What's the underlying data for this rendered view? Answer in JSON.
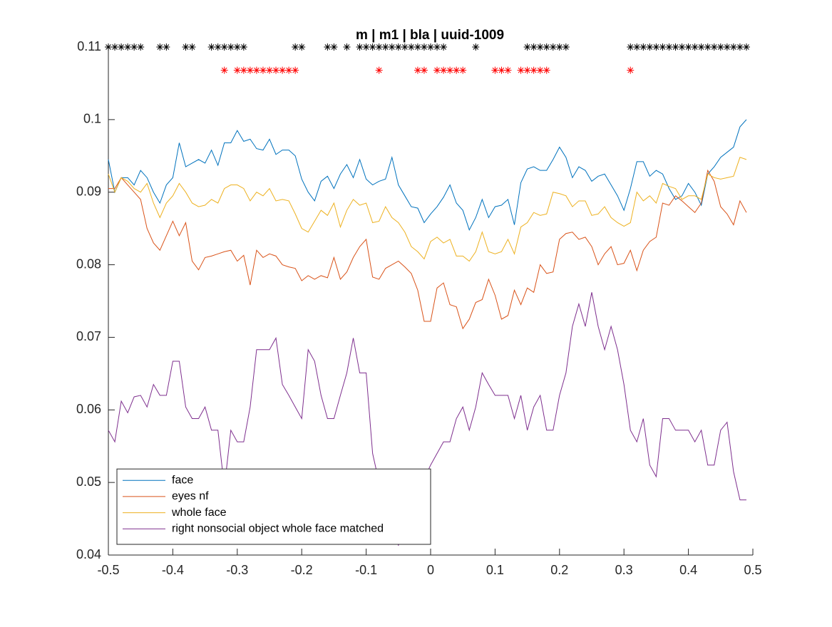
{
  "chart_data": {
    "type": "line",
    "title": "m | m1 | bla | uuid-1009",
    "x": [
      -0.5,
      -0.49,
      -0.48,
      -0.47,
      -0.46,
      -0.45,
      -0.44,
      -0.43,
      -0.42,
      -0.41,
      -0.4,
      -0.39,
      -0.38,
      -0.37,
      -0.36,
      -0.35,
      -0.34,
      -0.33,
      -0.32,
      -0.31,
      -0.3,
      -0.29,
      -0.28,
      -0.27,
      -0.26,
      -0.25,
      -0.24,
      -0.23,
      -0.22,
      -0.21,
      -0.2,
      -0.19,
      -0.18,
      -0.17,
      -0.16,
      -0.15,
      -0.14,
      -0.13,
      -0.12,
      -0.11,
      -0.1,
      -0.09,
      -0.08,
      -0.07,
      -0.06,
      -0.05,
      -0.04,
      -0.03,
      -0.02,
      -0.01,
      0,
      0.01,
      0.02,
      0.03,
      0.04,
      0.05,
      0.06,
      0.07,
      0.08,
      0.09,
      0.1,
      0.11,
      0.12,
      0.13,
      0.14,
      0.15,
      0.16,
      0.17,
      0.18,
      0.19,
      0.2,
      0.21,
      0.22,
      0.23,
      0.24,
      0.25,
      0.26,
      0.27,
      0.28,
      0.29,
      0.3,
      0.31,
      0.32,
      0.33,
      0.34,
      0.35,
      0.36,
      0.37,
      0.38,
      0.39,
      0.4,
      0.41,
      0.42,
      0.43,
      0.44,
      0.45,
      0.46,
      0.47,
      0.48,
      0.49
    ],
    "series": [
      {
        "name": "face",
        "color": "#0072bd",
        "values": [
          0.0945,
          0.09,
          0.092,
          0.092,
          0.091,
          0.093,
          0.092,
          0.09,
          0.0885,
          0.091,
          0.092,
          0.0968,
          0.0935,
          0.094,
          0.0945,
          0.094,
          0.0958,
          0.0937,
          0.0968,
          0.0968,
          0.0985,
          0.097,
          0.0973,
          0.096,
          0.0958,
          0.0973,
          0.0952,
          0.0958,
          0.0958,
          0.095,
          0.0918,
          0.09,
          0.0888,
          0.0915,
          0.0922,
          0.0905,
          0.0925,
          0.0938,
          0.092,
          0.0945,
          0.0918,
          0.091,
          0.0915,
          0.0918,
          0.0948,
          0.091,
          0.0895,
          0.088,
          0.0878,
          0.0858,
          0.087,
          0.088,
          0.0893,
          0.091,
          0.0885,
          0.0875,
          0.0848,
          0.0865,
          0.089,
          0.0865,
          0.088,
          0.0882,
          0.089,
          0.0855,
          0.0913,
          0.0932,
          0.0935,
          0.093,
          0.093,
          0.0945,
          0.0962,
          0.0948,
          0.092,
          0.0935,
          0.093,
          0.0915,
          0.0922,
          0.0925,
          0.091,
          0.0895,
          0.0875,
          0.0905,
          0.0942,
          0.0942,
          0.0922,
          0.093,
          0.0925,
          0.0905,
          0.089,
          0.0895,
          0.0912,
          0.09,
          0.0882,
          0.0925,
          0.0935,
          0.0948,
          0.0955,
          0.0962,
          0.099,
          0.1
        ]
      },
      {
        "name": "eyes nf",
        "color": "#d95319",
        "values": [
          0.0905,
          0.0905,
          0.092,
          0.091,
          0.09,
          0.089,
          0.085,
          0.083,
          0.082,
          0.084,
          0.086,
          0.084,
          0.0858,
          0.0805,
          0.0793,
          0.081,
          0.0812,
          0.0815,
          0.0818,
          0.082,
          0.0805,
          0.0813,
          0.0772,
          0.082,
          0.081,
          0.0815,
          0.0812,
          0.08,
          0.0797,
          0.0795,
          0.0778,
          0.0785,
          0.078,
          0.0785,
          0.0782,
          0.081,
          0.078,
          0.079,
          0.081,
          0.0825,
          0.0835,
          0.0783,
          0.078,
          0.0795,
          0.08,
          0.0805,
          0.0797,
          0.0788,
          0.0765,
          0.0722,
          0.0722,
          0.0768,
          0.0775,
          0.0745,
          0.0742,
          0.0712,
          0.0725,
          0.0748,
          0.0752,
          0.078,
          0.0758,
          0.0725,
          0.073,
          0.0765,
          0.0745,
          0.0768,
          0.0762,
          0.08,
          0.0788,
          0.079,
          0.0835,
          0.0843,
          0.0845,
          0.0835,
          0.0838,
          0.0825,
          0.08,
          0.0815,
          0.0825,
          0.08,
          0.0802,
          0.082,
          0.0792,
          0.082,
          0.0832,
          0.0838,
          0.0885,
          0.0882,
          0.0895,
          0.0888,
          0.088,
          0.0872,
          0.0885,
          0.093,
          0.0915,
          0.088,
          0.087,
          0.0855,
          0.0888,
          0.0872
        ]
      },
      {
        "name": "whole face",
        "color": "#edb120",
        "values": [
          0.0925,
          0.09,
          0.092,
          0.0915,
          0.0905,
          0.09,
          0.0912,
          0.0885,
          0.0865,
          0.0885,
          0.0895,
          0.0912,
          0.09,
          0.0885,
          0.088,
          0.0882,
          0.089,
          0.0885,
          0.0905,
          0.091,
          0.091,
          0.0905,
          0.0888,
          0.09,
          0.0895,
          0.0905,
          0.0888,
          0.089,
          0.0888,
          0.087,
          0.085,
          0.0845,
          0.086,
          0.0875,
          0.0868,
          0.0885,
          0.0852,
          0.0875,
          0.089,
          0.0882,
          0.0885,
          0.0858,
          0.086,
          0.088,
          0.0865,
          0.0858,
          0.0845,
          0.0825,
          0.0818,
          0.0808,
          0.0832,
          0.0838,
          0.083,
          0.0835,
          0.0812,
          0.0812,
          0.0805,
          0.0818,
          0.0845,
          0.0818,
          0.0815,
          0.0818,
          0.0835,
          0.0815,
          0.0852,
          0.0858,
          0.0872,
          0.0868,
          0.087,
          0.09,
          0.0898,
          0.0895,
          0.088,
          0.0888,
          0.0888,
          0.0868,
          0.087,
          0.088,
          0.0865,
          0.0858,
          0.0853,
          0.0858,
          0.09,
          0.0888,
          0.0895,
          0.0885,
          0.0912,
          0.0908,
          0.0905,
          0.089,
          0.0895,
          0.0895,
          0.089,
          0.0925,
          0.092,
          0.0918,
          0.092,
          0.0922,
          0.0948,
          0.0945
        ]
      },
      {
        "name": "right nonsocial object whole face matched",
        "color": "#7e2f8e",
        "values": [
          0.0572,
          0.0556,
          0.0612,
          0.0596,
          0.0618,
          0.062,
          0.0604,
          0.0635,
          0.062,
          0.062,
          0.0667,
          0.0667,
          0.0604,
          0.0588,
          0.0588,
          0.0604,
          0.0572,
          0.0572,
          0.0493,
          0.0572,
          0.0556,
          0.0556,
          0.0604,
          0.0683,
          0.0683,
          0.0683,
          0.0699,
          0.0635,
          0.062,
          0.0604,
          0.0588,
          0.0683,
          0.0667,
          0.062,
          0.0588,
          0.0588,
          0.062,
          0.0651,
          0.0699,
          0.0651,
          0.0651,
          0.054,
          0.05,
          0.049,
          0.046,
          0.0413,
          0.046,
          0.048,
          0.05,
          0.0505,
          0.0524,
          0.054,
          0.0556,
          0.0556,
          0.0588,
          0.0604,
          0.0572,
          0.0604,
          0.0651,
          0.0635,
          0.062,
          0.062,
          0.062,
          0.0588,
          0.062,
          0.0572,
          0.0604,
          0.062,
          0.0572,
          0.0572,
          0.062,
          0.0651,
          0.0715,
          0.0746,
          0.0715,
          0.0762,
          0.0715,
          0.0683,
          0.0715,
          0.0683,
          0.0635,
          0.0572,
          0.0556,
          0.0588,
          0.0524,
          0.0508,
          0.0588,
          0.0588,
          0.0572,
          0.0572,
          0.0572,
          0.0556,
          0.0572,
          0.0524,
          0.0524,
          0.0572,
          0.0583,
          0.0515,
          0.0476,
          0.0476
        ]
      }
    ],
    "markers": [
      {
        "color": "#000000",
        "y": 0.11,
        "x": [
          -0.5,
          -0.49,
          -0.48,
          -0.47,
          -0.46,
          -0.45,
          -0.42,
          -0.41,
          -0.38,
          -0.37,
          -0.34,
          -0.33,
          -0.32,
          -0.31,
          -0.3,
          -0.29,
          -0.21,
          -0.2,
          -0.16,
          -0.15,
          -0.13,
          -0.11,
          -0.1,
          -0.09,
          -0.08,
          -0.07,
          -0.06,
          -0.05,
          -0.04,
          -0.03,
          -0.02,
          -0.01,
          0,
          0.01,
          0.02,
          0.07,
          0.15,
          0.16,
          0.17,
          0.18,
          0.19,
          0.2,
          0.21,
          0.31,
          0.32,
          0.33,
          0.34,
          0.35,
          0.36,
          0.37,
          0.38,
          0.39,
          0.4,
          0.41,
          0.42,
          0.43,
          0.44,
          0.45,
          0.46,
          0.47,
          0.48,
          0.49
        ]
      },
      {
        "color": "#ff0000",
        "y": 0.1068,
        "x": [
          -0.32,
          -0.3,
          -0.29,
          -0.28,
          -0.27,
          -0.26,
          -0.25,
          -0.24,
          -0.23,
          -0.22,
          -0.21,
          -0.08,
          -0.02,
          -0.01,
          0.01,
          0.02,
          0.03,
          0.04,
          0.05,
          0.1,
          0.11,
          0.12,
          0.14,
          0.15,
          0.16,
          0.17,
          0.18,
          0.31
        ]
      }
    ],
    "xlim": [
      -0.5,
      0.5
    ],
    "xticks": [
      -0.5,
      -0.4,
      -0.3,
      -0.2,
      -0.1,
      0,
      0.1,
      0.2,
      0.3,
      0.4,
      0.5
    ],
    "ylim": [
      0.04,
      0.11
    ],
    "yticks": [
      0.04,
      0.05,
      0.06,
      0.07,
      0.08,
      0.09,
      0.1,
      0.11
    ],
    "legend_location": "south"
  }
}
